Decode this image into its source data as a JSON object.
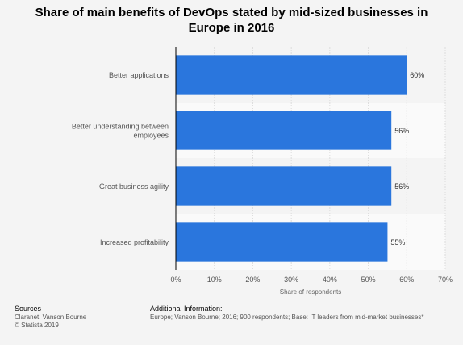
{
  "chart_data": {
    "type": "bar",
    "orientation": "horizontal",
    "title": "Share of main benefits of DevOps stated by mid-sized businesses in Europe in 2016",
    "categories": [
      "Better applications",
      "Better understanding between employees",
      "Great business agility",
      "Increased profitability"
    ],
    "category_lines": [
      [
        "Better applications"
      ],
      [
        "Better understanding between",
        "employees"
      ],
      [
        "Great business agility"
      ],
      [
        "Increased profitability"
      ]
    ],
    "values": [
      60,
      56,
      56,
      55
    ],
    "value_labels": [
      "60%",
      "56%",
      "56%",
      "55%"
    ],
    "xlabel": "Share of respondents",
    "ylabel": "",
    "xlim": [
      0,
      70
    ],
    "ticks": [
      0,
      10,
      20,
      30,
      40,
      50,
      60,
      70
    ],
    "tick_labels": [
      "0%",
      "10%",
      "20%",
      "30%",
      "40%",
      "50%",
      "60%",
      "70%"
    ],
    "grid": true,
    "legend": "none",
    "bar_color": "#2a76dd"
  },
  "footer": {
    "sources_heading": "Sources",
    "sources_line1": "Claranet; Vanson Bourne",
    "sources_line2": "© Statista 2019",
    "info_heading": "Additional Information:",
    "info_text": "Europe; Vanson Bourne; 2016; 900 respondents; Base: IT leaders from mid-market businesses*"
  }
}
